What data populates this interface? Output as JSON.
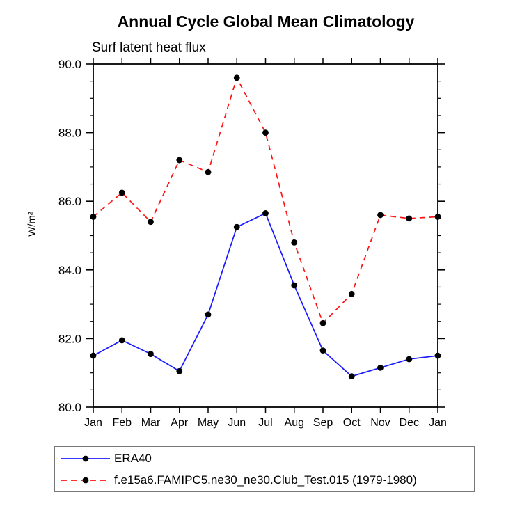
{
  "chart_data": {
    "type": "line",
    "title": "Annual Cycle Global Mean Climatology",
    "subtitle": "Surf latent heat flux",
    "ylabel": "W/m²",
    "xlabel": "",
    "x_tick_labels": [
      "Jan",
      "Feb",
      "Mar",
      "Apr",
      "May",
      "Jun",
      "Jul",
      "Aug",
      "Sep",
      "Oct",
      "Nov",
      "Dec",
      "Jan"
    ],
    "ylim": [
      80.0,
      90.0
    ],
    "y_major_ticks": [
      80.0,
      82.0,
      84.0,
      86.0,
      88.0,
      90.0
    ],
    "y_tick_labels": [
      "80.0",
      "82.0",
      "84.0",
      "86.0",
      "88.0",
      "90.0"
    ],
    "y_minor_step": 0.5,
    "grid": false,
    "legend_position": "bottom-left-box",
    "axis_color": "#000000",
    "marker": "filled-circle",
    "marker_color": "#000000",
    "series": [
      {
        "name": "ERA40",
        "color": "#1a1aff",
        "line_style": "solid",
        "values": [
          81.5,
          81.95,
          81.55,
          81.05,
          82.7,
          85.25,
          85.65,
          83.55,
          81.65,
          80.9,
          81.15,
          81.4,
          81.5
        ]
      },
      {
        "name": "f.e15a6.FAMIPC5.ne30_ne30.Club_Test.015 (1979-1980)",
        "color": "#ff1212",
        "line_style": "dashed",
        "values": [
          85.55,
          86.25,
          85.4,
          87.2,
          86.85,
          89.6,
          88.0,
          84.8,
          82.45,
          83.3,
          85.6,
          85.5,
          85.55
        ]
      }
    ]
  }
}
